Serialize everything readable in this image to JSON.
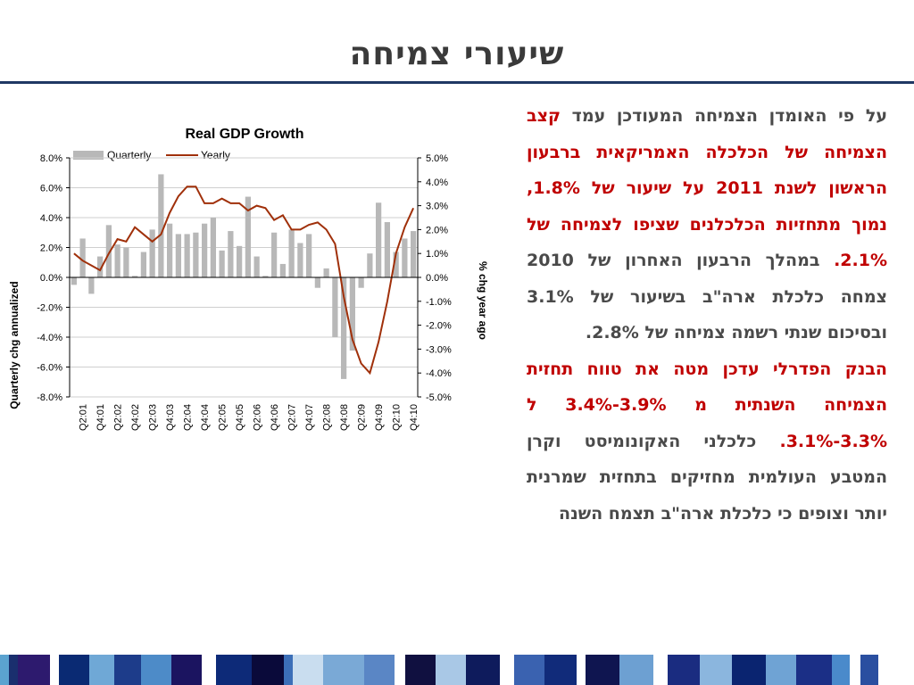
{
  "slide_title": "שיעורי צמיחה",
  "paragraph1": {
    "part1": "על פי האומדן הצמיחה המעודכן עמד ",
    "part2_red": "קצב הצמיחה של הכלכלה האמריקאית ברבעון הראשון לשנת 2011 על שיעור של 1.8%, נמוך מתחזיות הכלכלנים שציפו לצמיחה של 2.1%.",
    "part3": " במהלך הרבעון האחרון של 2010 צמחה כלכלת ארה\"ב בשיעור של 3.1% ובסיכום שנתי רשמה צמיחה של 2.8%."
  },
  "paragraph2": {
    "part1_red": "הבנק הפדרלי עדכן מטה את טווח תחזית הצמיחה השנתית מ 3.9%-3.4% ל 3.3%-3.1%.",
    "part2": " כלכלני האקונומיסט וקרן המטבע העולמית מחזיקים בתחזית שמרנית יותר וצופים כי כלכלת ארה\"ב תצמח השנה"
  },
  "chart_data": {
    "type": "bar+line",
    "title": "Real GDP Growth",
    "ylabel_left": "Quarterly chg annualized",
    "ylabel_right": "% chg year ago",
    "ylim_left": [
      -8,
      8
    ],
    "ylim_right": [
      -5,
      5
    ],
    "yticks_left": [
      "8.0%",
      "6.0%",
      "4.0%",
      "2.0%",
      "0.0%",
      "-2.0%",
      "-4.0%",
      "-6.0%",
      "-8.0%"
    ],
    "yticks_right": [
      "5.0%",
      "4.0%",
      "3.0%",
      "2.0%",
      "1.0%",
      "0.0%",
      "-1.0%",
      "-2.0%",
      "-3.0%",
      "-4.0%",
      "-5.0%"
    ],
    "x_tick_labels": [
      "Q2:01",
      "Q4:01",
      "Q2:02",
      "Q4:02",
      "Q2:03",
      "Q4:03",
      "Q2:04",
      "Q4:04",
      "Q2:05",
      "Q4:05",
      "Q2:06",
      "Q4:06",
      "Q2:07",
      "Q4:07",
      "Q2:08",
      "Q4:08",
      "Q2:09",
      "Q4:09",
      "Q2:10",
      "Q4:10"
    ],
    "quarters": [
      "Q1:01",
      "Q2:01",
      "Q3:01",
      "Q4:01",
      "Q1:02",
      "Q2:02",
      "Q3:02",
      "Q4:02",
      "Q1:03",
      "Q2:03",
      "Q3:03",
      "Q4:03",
      "Q1:04",
      "Q2:04",
      "Q3:04",
      "Q4:04",
      "Q1:05",
      "Q2:05",
      "Q3:05",
      "Q4:05",
      "Q1:06",
      "Q2:06",
      "Q3:06",
      "Q4:06",
      "Q1:07",
      "Q2:07",
      "Q3:07",
      "Q4:07",
      "Q1:08",
      "Q2:08",
      "Q3:08",
      "Q4:08",
      "Q1:09",
      "Q2:09",
      "Q3:09",
      "Q4:09",
      "Q1:10",
      "Q2:10",
      "Q3:10",
      "Q4:10"
    ],
    "series": [
      {
        "name": "Quarterly",
        "kind": "bar",
        "color": "#b8b8b8",
        "values": [
          -0.5,
          2.6,
          -1.1,
          1.4,
          3.5,
          2.2,
          2.0,
          0.1,
          1.7,
          3.2,
          6.9,
          3.6,
          2.9,
          2.9,
          3.0,
          3.6,
          4.0,
          1.8,
          3.1,
          2.1,
          5.4,
          1.4,
          0.1,
          3.0,
          0.9,
          3.2,
          2.3,
          2.9,
          -0.7,
          0.6,
          -4.0,
          -6.8,
          -4.9,
          -0.7,
          1.6,
          5.0,
          3.7,
          1.7,
          2.6,
          3.1
        ]
      },
      {
        "name": "Yearly",
        "kind": "line",
        "color": "#a0300a",
        "values": [
          1.0,
          0.7,
          0.5,
          0.3,
          1.0,
          1.6,
          1.5,
          2.1,
          1.8,
          1.5,
          1.8,
          2.7,
          3.4,
          3.8,
          3.8,
          3.1,
          3.1,
          3.3,
          3.1,
          3.1,
          2.8,
          3.0,
          2.9,
          2.4,
          2.6,
          2.0,
          2.0,
          2.2,
          2.3,
          2.0,
          1.4,
          -0.8,
          -2.6,
          -3.6,
          -4.0,
          -2.7,
          -1.0,
          1.0,
          2.1,
          2.9
        ]
      }
    ],
    "legend": [
      "Quarterly",
      "Yearly"
    ],
    "legend_position": "top",
    "grid": "horizontal"
  },
  "colors": {
    "title": "#3a3a3a",
    "rule": "#1f3864",
    "body_text": "#4a4a4a",
    "highlight_text": "#c00000"
  }
}
